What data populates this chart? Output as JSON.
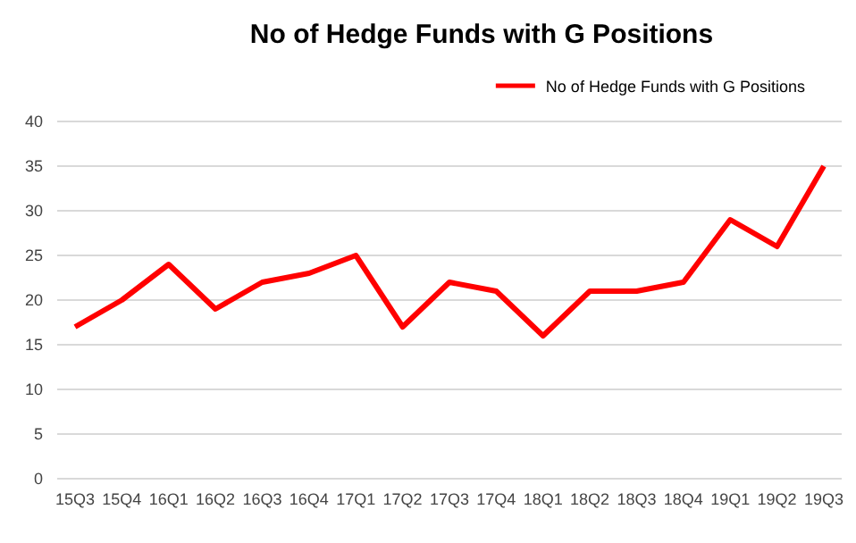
{
  "chart_data": {
    "type": "line",
    "title": "No of Hedge Funds with G Positions",
    "categories": [
      "15Q3",
      "15Q4",
      "16Q1",
      "16Q2",
      "16Q3",
      "16Q4",
      "17Q1",
      "17Q2",
      "17Q3",
      "17Q4",
      "18Q1",
      "18Q2",
      "18Q3",
      "18Q4",
      "19Q1",
      "19Q2",
      "19Q3"
    ],
    "series": [
      {
        "name": "No of Hedge Funds with G Positions",
        "color": "#ff0000",
        "values": [
          17,
          20,
          24,
          19,
          22,
          23,
          25,
          17,
          22,
          21,
          16,
          21,
          21,
          22,
          29,
          26,
          35
        ]
      }
    ],
    "ylim": [
      0,
      40
    ],
    "yticks": [
      0,
      5,
      10,
      15,
      20,
      25,
      30,
      35,
      40
    ],
    "grid": "y",
    "legend": "top right",
    "marker": "none",
    "line_style": "solid"
  }
}
